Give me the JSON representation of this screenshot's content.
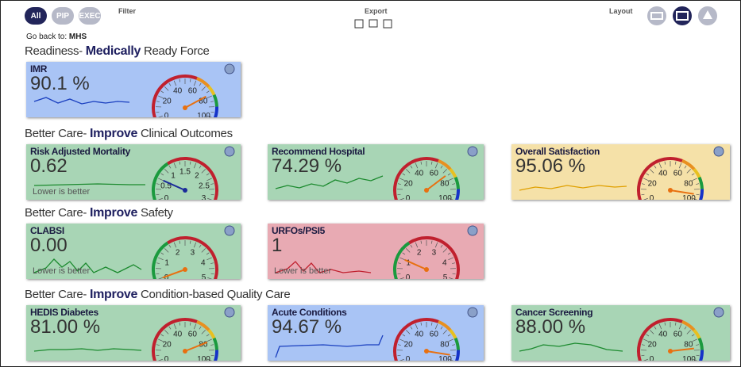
{
  "toolbar": {
    "view_buttons": [
      "All",
      "PIP",
      "EXEC"
    ],
    "filter": "Filter",
    "export": "Export",
    "layout": "Layout"
  },
  "breadcrumb": {
    "label": "Go back to:",
    "link": "MHS"
  },
  "sections": [
    {
      "prefix": "Readiness-",
      "emphasis": "Medically",
      "suffix": "Ready Force",
      "cards": [
        {
          "title": "IMR",
          "value": "90.1 %",
          "color": "#a9c4f5",
          "ticks": [
            0,
            20,
            40,
            60,
            80,
            100
          ]
        }
      ]
    },
    {
      "prefix": "Better Care-",
      "emphasis": "Improve",
      "suffix": "Clinical Outcomes",
      "cards": [
        {
          "title": "Risk Adjusted Mortality",
          "value": "0.62",
          "note": "Lower is better",
          "color": "#a8d5b5",
          "ticks": [
            0,
            0.5,
            1,
            1.5,
            2,
            2.5,
            3
          ]
        },
        {
          "title": "Recommend Hospital",
          "value": "74.29 %",
          "color": "#a8d5b5",
          "ticks": [
            0,
            20,
            40,
            60,
            80,
            100
          ]
        },
        {
          "title": "Overall Satisfaction",
          "value": "95.06 %",
          "color": "#f5e1a8",
          "ticks": [
            0,
            20,
            40,
            60,
            80,
            100
          ]
        }
      ]
    },
    {
      "prefix": "Better Care-",
      "emphasis": "Improve",
      "suffix": "Safety",
      "cards": [
        {
          "title": "CLABSI",
          "value": "0.00",
          "note": "Lower is better",
          "color": "#a8d5b5",
          "ticks": [
            0,
            1,
            2,
            3,
            4,
            5
          ]
        },
        {
          "title": "URFOs/PSI5",
          "value": "1",
          "note": "Lower is better",
          "color": "#e8aab3",
          "ticks": [
            0,
            1,
            2,
            3,
            4,
            5
          ]
        }
      ]
    },
    {
      "prefix": "Better Care-",
      "emphasis": "Improve",
      "suffix": "Condition-based Quality Care",
      "cards": [
        {
          "title": "HEDIS Diabetes",
          "value": "81.00 %",
          "color": "#a8d5b5",
          "ticks": [
            0,
            20,
            40,
            60,
            80,
            100
          ]
        },
        {
          "title": "Acute Conditions",
          "value": "94.67 %",
          "color": "#a9c4f5",
          "ticks": [
            0,
            20,
            40,
            60,
            80,
            100
          ]
        },
        {
          "title": "Cancer Screening",
          "value": "88.00 %",
          "color": "#a8d5b5",
          "ticks": [
            0,
            20,
            40,
            60,
            80,
            100
          ]
        }
      ]
    }
  ]
}
